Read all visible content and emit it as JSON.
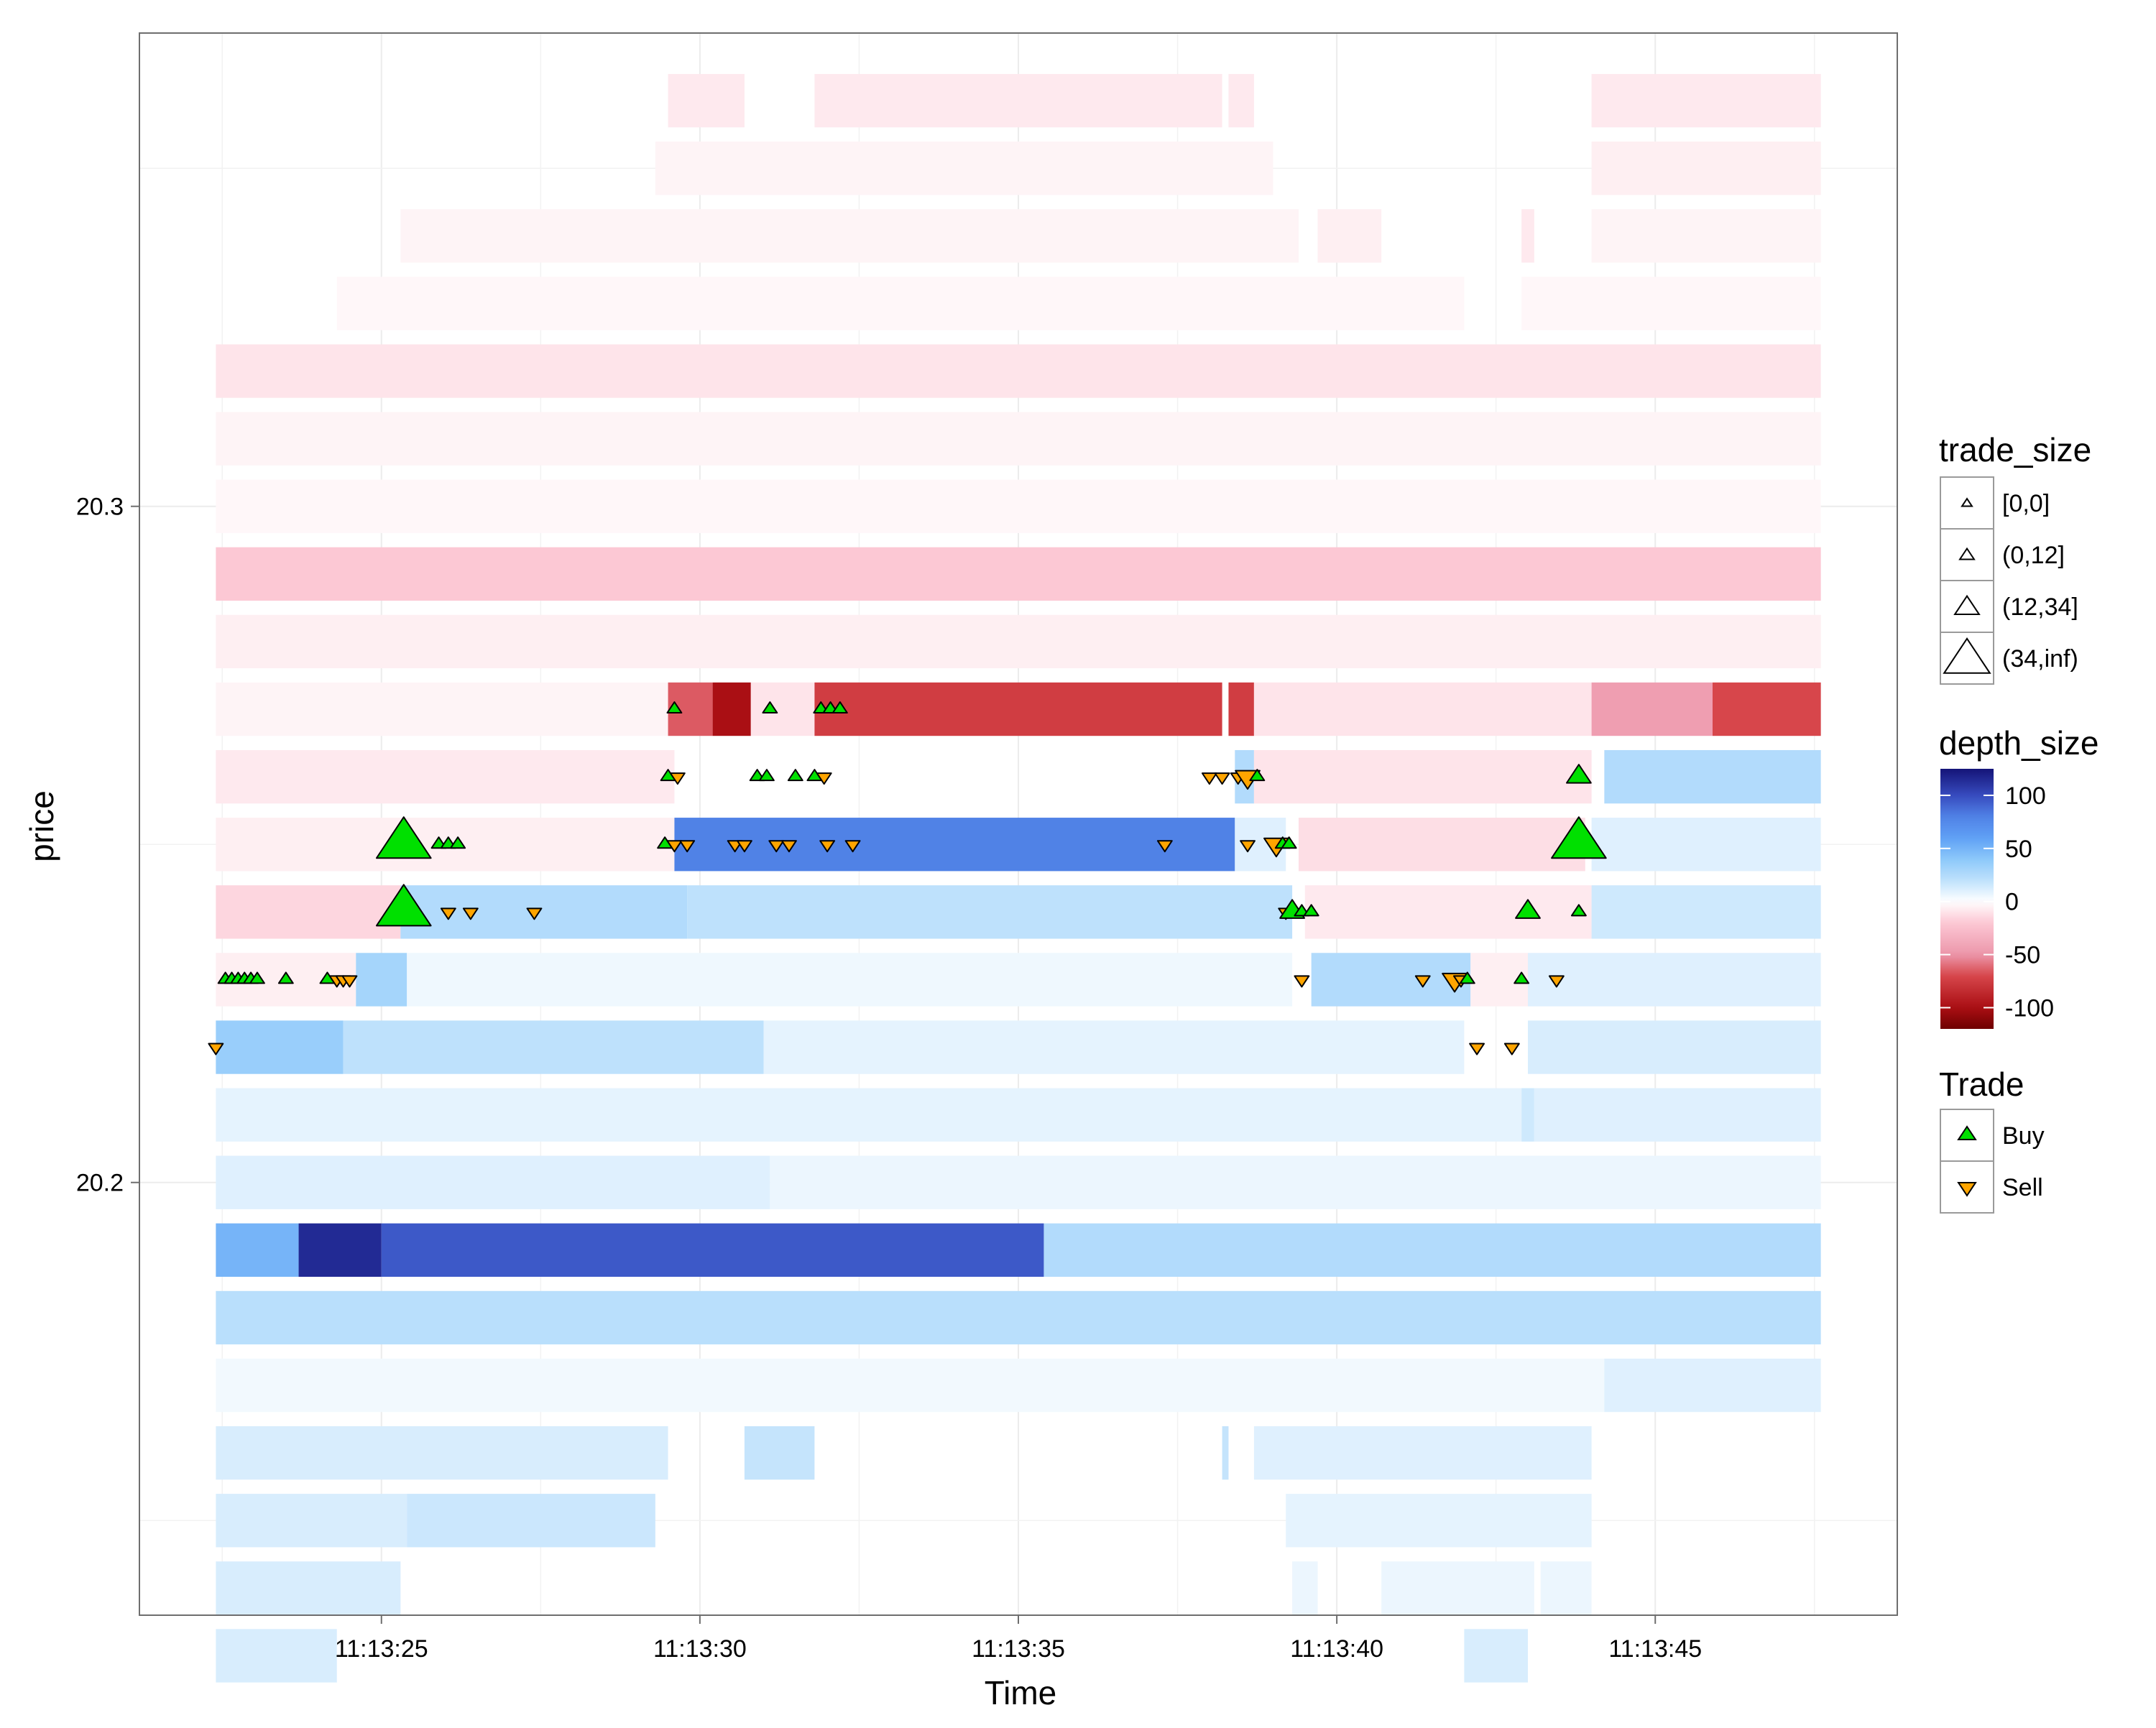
{
  "chart_data": {
    "type": "heatmap",
    "title": "",
    "xlabel": "Time",
    "ylabel": "price",
    "x_unit": "seconds after 11:13:00",
    "xlim": [
      21.2,
      48.8
    ],
    "ylim": [
      20.136,
      20.37
    ],
    "x_ticks": [
      {
        "value": 25,
        "label": "11:13:25"
      },
      {
        "value": 30,
        "label": "11:13:30"
      },
      {
        "value": 35,
        "label": "11:13:35"
      },
      {
        "value": 40,
        "label": "11:13:40"
      },
      {
        "value": 45,
        "label": "11:13:45"
      }
    ],
    "y_ticks": [
      {
        "value": 20.2,
        "label": "20.2"
      },
      {
        "value": 20.3,
        "label": "20.3"
      }
    ],
    "grid": true,
    "colors": {
      "positive_max": "#1a237e",
      "positive_mid": "#2f8df5",
      "zero": "#ffffff",
      "negative_mid": "#f4a1b6",
      "negative_max": "#8b0000",
      "buy": "#00e000",
      "sell": "#ffa500"
    },
    "depth_cells": [
      {
        "price": 20.36,
        "x0": 29.5,
        "x1": 30.7,
        "depth": -8
      },
      {
        "price": 20.36,
        "x0": 31.8,
        "x1": 38.2,
        "depth": -8
      },
      {
        "price": 20.36,
        "x0": 38.3,
        "x1": 38.7,
        "depth": -8
      },
      {
        "price": 20.36,
        "x0": 44.0,
        "x1": 47.6,
        "depth": -8
      },
      {
        "price": 20.35,
        "x0": 29.3,
        "x1": 39.0,
        "depth": -4
      },
      {
        "price": 20.35,
        "x0": 44.0,
        "x1": 47.6,
        "depth": -6
      },
      {
        "price": 20.34,
        "x0": 25.3,
        "x1": 39.4,
        "depth": -4
      },
      {
        "price": 20.34,
        "x0": 39.7,
        "x1": 40.7,
        "depth": -6
      },
      {
        "price": 20.34,
        "x0": 42.9,
        "x1": 43.1,
        "depth": -8
      },
      {
        "price": 20.34,
        "x0": 44.0,
        "x1": 47.6,
        "depth": -4
      },
      {
        "price": 20.33,
        "x0": 24.3,
        "x1": 42.0,
        "depth": -3
      },
      {
        "price": 20.33,
        "x0": 42.9,
        "x1": 47.6,
        "depth": -3
      },
      {
        "price": 20.32,
        "x0": 22.4,
        "x1": 47.6,
        "depth": -10
      },
      {
        "price": 20.31,
        "x0": 22.4,
        "x1": 47.6,
        "depth": -4
      },
      {
        "price": 20.3,
        "x0": 22.4,
        "x1": 47.6,
        "depth": -3
      },
      {
        "price": 20.29,
        "x0": 22.4,
        "x1": 47.6,
        "depth": -20
      },
      {
        "price": 20.28,
        "x0": 22.4,
        "x1": 47.6,
        "depth": -6
      },
      {
        "price": 20.27,
        "x0": 22.4,
        "x1": 29.5,
        "depth": -4
      },
      {
        "price": 20.27,
        "x0": 29.5,
        "x1": 30.2,
        "depth": -65
      },
      {
        "price": 20.27,
        "x0": 30.2,
        "x1": 30.8,
        "depth": -100
      },
      {
        "price": 20.27,
        "x0": 30.8,
        "x1": 31.8,
        "depth": -10
      },
      {
        "price": 20.27,
        "x0": 31.8,
        "x1": 38.2,
        "depth": -75
      },
      {
        "price": 20.27,
        "x0": 38.3,
        "x1": 38.7,
        "depth": -75
      },
      {
        "price": 20.27,
        "x0": 38.7,
        "x1": 44.0,
        "depth": -10
      },
      {
        "price": 20.27,
        "x0": 44.0,
        "x1": 45.9,
        "depth": -45
      },
      {
        "price": 20.27,
        "x0": 45.9,
        "x1": 47.6,
        "depth": -70
      },
      {
        "price": 20.26,
        "x0": 22.4,
        "x1": 29.6,
        "depth": -8
      },
      {
        "price": 20.26,
        "x0": 38.4,
        "x1": 38.7,
        "depth": 25
      },
      {
        "price": 20.26,
        "x0": 38.7,
        "x1": 44.0,
        "depth": -10
      },
      {
        "price": 20.26,
        "x0": 44.2,
        "x1": 47.6,
        "depth": 25
      },
      {
        "price": 20.25,
        "x0": 22.4,
        "x1": 29.6,
        "depth": -6
      },
      {
        "price": 20.25,
        "x0": 29.6,
        "x1": 38.4,
        "depth": 80
      },
      {
        "price": 20.25,
        "x0": 38.4,
        "x1": 39.2,
        "depth": 10
      },
      {
        "price": 20.25,
        "x0": 39.4,
        "x1": 43.9,
        "depth": -12
      },
      {
        "price": 20.25,
        "x0": 44.0,
        "x1": 47.6,
        "depth": 10
      },
      {
        "price": 20.24,
        "x0": 22.4,
        "x1": 25.3,
        "depth": -15
      },
      {
        "price": 20.24,
        "x0": 25.3,
        "x1": 29.8,
        "depth": 25
      },
      {
        "price": 20.24,
        "x0": 29.8,
        "x1": 39.3,
        "depth": 20
      },
      {
        "price": 20.24,
        "x0": 39.5,
        "x1": 44.0,
        "depth": -8
      },
      {
        "price": 20.24,
        "x0": 44.0,
        "x1": 47.6,
        "depth": 15
      },
      {
        "price": 20.23,
        "x0": 22.4,
        "x1": 24.6,
        "depth": -6
      },
      {
        "price": 20.23,
        "x0": 24.6,
        "x1": 25.4,
        "depth": 30
      },
      {
        "price": 20.23,
        "x0": 25.4,
        "x1": 39.3,
        "depth": 5
      },
      {
        "price": 20.23,
        "x0": 39.6,
        "x1": 42.1,
        "depth": 25
      },
      {
        "price": 20.23,
        "x0": 42.1,
        "x1": 43.0,
        "depth": -6
      },
      {
        "price": 20.23,
        "x0": 43.0,
        "x1": 44.1,
        "depth": 10
      },
      {
        "price": 20.23,
        "x0": 44.1,
        "x1": 47.6,
        "depth": 10
      },
      {
        "price": 20.22,
        "x0": 22.4,
        "x1": 24.4,
        "depth": 35
      },
      {
        "price": 20.22,
        "x0": 24.4,
        "x1": 31.0,
        "depth": 20
      },
      {
        "price": 20.22,
        "x0": 31.0,
        "x1": 42.0,
        "depth": 8
      },
      {
        "price": 20.22,
        "x0": 43.0,
        "x1": 47.6,
        "depth": 12
      },
      {
        "price": 20.21,
        "x0": 22.4,
        "x1": 42.9,
        "depth": 8
      },
      {
        "price": 20.21,
        "x0": 42.9,
        "x1": 43.1,
        "depth": 15
      },
      {
        "price": 20.21,
        "x0": 43.1,
        "x1": 47.6,
        "depth": 10
      },
      {
        "price": 20.2,
        "x0": 22.4,
        "x1": 31.1,
        "depth": 10
      },
      {
        "price": 20.2,
        "x0": 31.1,
        "x1": 47.6,
        "depth": 6
      },
      {
        "price": 20.19,
        "x0": 22.4,
        "x1": 23.7,
        "depth": 50
      },
      {
        "price": 20.19,
        "x0": 23.7,
        "x1": 25.0,
        "depth": 115
      },
      {
        "price": 20.19,
        "x0": 25.0,
        "x1": 35.4,
        "depth": 95
      },
      {
        "price": 20.19,
        "x0": 35.4,
        "x1": 47.6,
        "depth": 25
      },
      {
        "price": 20.18,
        "x0": 22.4,
        "x1": 47.6,
        "depth": 22
      },
      {
        "price": 20.17,
        "x0": 22.4,
        "x1": 44.2,
        "depth": 4
      },
      {
        "price": 20.17,
        "x0": 44.2,
        "x1": 47.6,
        "depth": 10
      },
      {
        "price": 20.16,
        "x0": 22.4,
        "x1": 29.5,
        "depth": 12
      },
      {
        "price": 20.16,
        "x0": 30.7,
        "x1": 31.8,
        "depth": 18
      },
      {
        "price": 20.16,
        "x0": 38.2,
        "x1": 38.3,
        "depth": 18
      },
      {
        "price": 20.16,
        "x0": 38.7,
        "x1": 44.0,
        "depth": 10
      },
      {
        "price": 20.15,
        "x0": 22.4,
        "x1": 25.4,
        "depth": 12
      },
      {
        "price": 20.15,
        "x0": 25.4,
        "x1": 29.3,
        "depth": 16
      },
      {
        "price": 20.15,
        "x0": 39.2,
        "x1": 44.0,
        "depth": 8
      },
      {
        "price": 20.14,
        "x0": 22.4,
        "x1": 25.3,
        "depth": 12
      },
      {
        "price": 20.14,
        "x0": 39.3,
        "x1": 39.7,
        "depth": 6
      },
      {
        "price": 20.14,
        "x0": 40.7,
        "x1": 43.1,
        "depth": 6
      },
      {
        "price": 20.14,
        "x0": 43.2,
        "x1": 44.0,
        "depth": 6
      },
      {
        "price": 20.13,
        "x0": 22.4,
        "x1": 24.3,
        "depth": 12
      },
      {
        "price": 20.13,
        "x0": 42.0,
        "x1": 43.0,
        "depth": 12
      }
    ],
    "trades": [
      {
        "x": 29.6,
        "price": 20.27,
        "side": "Buy",
        "size": "(0,12]"
      },
      {
        "x": 31.1,
        "price": 20.27,
        "side": "Buy",
        "size": "(0,12]"
      },
      {
        "x": 31.9,
        "price": 20.27,
        "side": "Buy",
        "size": "(0,12]"
      },
      {
        "x": 32.05,
        "price": 20.27,
        "side": "Buy",
        "size": "(0,12]"
      },
      {
        "x": 32.2,
        "price": 20.27,
        "side": "Buy",
        "size": "(0,12]"
      },
      {
        "x": 29.5,
        "price": 20.26,
        "side": "Buy",
        "size": "(0,12]"
      },
      {
        "x": 29.65,
        "price": 20.26,
        "side": "Sell",
        "size": "(0,12]"
      },
      {
        "x": 30.9,
        "price": 20.26,
        "side": "Buy",
        "size": "(0,12]"
      },
      {
        "x": 31.05,
        "price": 20.26,
        "side": "Buy",
        "size": "(0,12]"
      },
      {
        "x": 31.5,
        "price": 20.26,
        "side": "Buy",
        "size": "(0,12]"
      },
      {
        "x": 31.8,
        "price": 20.26,
        "side": "Buy",
        "size": "(0,12]"
      },
      {
        "x": 31.95,
        "price": 20.26,
        "side": "Sell",
        "size": "(0,12]"
      },
      {
        "x": 38.0,
        "price": 20.26,
        "side": "Sell",
        "size": "(0,12]"
      },
      {
        "x": 38.2,
        "price": 20.26,
        "side": "Sell",
        "size": "(0,12]"
      },
      {
        "x": 38.45,
        "price": 20.26,
        "side": "Sell",
        "size": "(0,12]"
      },
      {
        "x": 38.6,
        "price": 20.26,
        "side": "Sell",
        "size": "(12,34]"
      },
      {
        "x": 38.75,
        "price": 20.26,
        "side": "Buy",
        "size": "(0,12]"
      },
      {
        "x": 43.8,
        "price": 20.26,
        "side": "Buy",
        "size": "(12,34]"
      },
      {
        "x": 25.35,
        "price": 20.25,
        "side": "Buy",
        "size": "(34,inf)"
      },
      {
        "x": 25.9,
        "price": 20.25,
        "side": "Buy",
        "size": "(0,12]"
      },
      {
        "x": 26.05,
        "price": 20.25,
        "side": "Buy",
        "size": "(0,12]"
      },
      {
        "x": 26.2,
        "price": 20.25,
        "side": "Buy",
        "size": "(0,12]"
      },
      {
        "x": 29.45,
        "price": 20.25,
        "side": "Buy",
        "size": "(0,12]"
      },
      {
        "x": 29.6,
        "price": 20.25,
        "side": "Sell",
        "size": "(0,12]"
      },
      {
        "x": 29.8,
        "price": 20.25,
        "side": "Sell",
        "size": "(0,12]"
      },
      {
        "x": 30.55,
        "price": 20.25,
        "side": "Sell",
        "size": "(0,12]"
      },
      {
        "x": 30.7,
        "price": 20.25,
        "side": "Sell",
        "size": "(0,12]"
      },
      {
        "x": 31.2,
        "price": 20.25,
        "side": "Sell",
        "size": "(0,12]"
      },
      {
        "x": 31.4,
        "price": 20.25,
        "side": "Sell",
        "size": "(0,12]"
      },
      {
        "x": 32.0,
        "price": 20.25,
        "side": "Sell",
        "size": "(0,12]"
      },
      {
        "x": 32.4,
        "price": 20.25,
        "side": "Sell",
        "size": "(0,12]"
      },
      {
        "x": 37.3,
        "price": 20.25,
        "side": "Sell",
        "size": "(0,12]"
      },
      {
        "x": 38.6,
        "price": 20.25,
        "side": "Sell",
        "size": "(0,12]"
      },
      {
        "x": 39.05,
        "price": 20.25,
        "side": "Sell",
        "size": "(12,34]"
      },
      {
        "x": 39.15,
        "price": 20.25,
        "side": "Buy",
        "size": "(0,12]"
      },
      {
        "x": 39.25,
        "price": 20.25,
        "side": "Buy",
        "size": "(0,12]"
      },
      {
        "x": 43.8,
        "price": 20.25,
        "side": "Buy",
        "size": "(34,inf)"
      },
      {
        "x": 25.35,
        "price": 20.24,
        "side": "Buy",
        "size": "(34,inf)"
      },
      {
        "x": 26.05,
        "price": 20.24,
        "side": "Sell",
        "size": "(0,12]"
      },
      {
        "x": 26.4,
        "price": 20.24,
        "side": "Sell",
        "size": "(0,12]"
      },
      {
        "x": 27.4,
        "price": 20.24,
        "side": "Sell",
        "size": "(0,12]"
      },
      {
        "x": 39.2,
        "price": 20.24,
        "side": "Sell",
        "size": "(0,12]"
      },
      {
        "x": 39.3,
        "price": 20.24,
        "side": "Buy",
        "size": "(12,34]"
      },
      {
        "x": 39.45,
        "price": 20.24,
        "side": "Buy",
        "size": "(0,12]"
      },
      {
        "x": 39.6,
        "price": 20.24,
        "side": "Buy",
        "size": "(0,12]"
      },
      {
        "x": 43.0,
        "price": 20.24,
        "side": "Buy",
        "size": "(12,34]"
      },
      {
        "x": 43.8,
        "price": 20.24,
        "side": "Buy",
        "size": "(0,12]"
      },
      {
        "x": 22.55,
        "price": 20.23,
        "side": "Buy",
        "size": "(0,12]"
      },
      {
        "x": 22.65,
        "price": 20.23,
        "side": "Buy",
        "size": "(0,12]"
      },
      {
        "x": 22.75,
        "price": 20.23,
        "side": "Buy",
        "size": "(0,12]"
      },
      {
        "x": 22.85,
        "price": 20.23,
        "side": "Buy",
        "size": "(0,12]"
      },
      {
        "x": 22.95,
        "price": 20.23,
        "side": "Buy",
        "size": "(0,12]"
      },
      {
        "x": 23.05,
        "price": 20.23,
        "side": "Buy",
        "size": "(0,12]"
      },
      {
        "x": 23.5,
        "price": 20.23,
        "side": "Buy",
        "size": "(0,12]"
      },
      {
        "x": 24.15,
        "price": 20.23,
        "side": "Buy",
        "size": "(0,12]"
      },
      {
        "x": 24.3,
        "price": 20.23,
        "side": "Sell",
        "size": "(0,12]"
      },
      {
        "x": 24.4,
        "price": 20.23,
        "side": "Sell",
        "size": "(0,12]"
      },
      {
        "x": 24.5,
        "price": 20.23,
        "side": "Sell",
        "size": "(0,12]"
      },
      {
        "x": 39.45,
        "price": 20.23,
        "side": "Sell",
        "size": "(0,12]"
      },
      {
        "x": 41.35,
        "price": 20.23,
        "side": "Sell",
        "size": "(0,12]"
      },
      {
        "x": 41.85,
        "price": 20.23,
        "side": "Sell",
        "size": "(12,34]"
      },
      {
        "x": 41.95,
        "price": 20.23,
        "side": "Sell",
        "size": "(0,12]"
      },
      {
        "x": 42.05,
        "price": 20.23,
        "side": "Buy",
        "size": "(0,12]"
      },
      {
        "x": 42.9,
        "price": 20.23,
        "side": "Buy",
        "size": "(0,12]"
      },
      {
        "x": 43.45,
        "price": 20.23,
        "side": "Sell",
        "size": "(0,12]"
      },
      {
        "x": 22.4,
        "price": 20.22,
        "side": "Sell",
        "size": "(0,12]"
      },
      {
        "x": 42.2,
        "price": 20.22,
        "side": "Sell",
        "size": "(0,12]"
      },
      {
        "x": 42.75,
        "price": 20.22,
        "side": "Sell",
        "size": "(0,12]"
      }
    ]
  },
  "legends": {
    "trade_size": {
      "title": "trade_size",
      "entries": [
        "[0,0]",
        "(0,12]",
        "(12,34]",
        "(34,inf)"
      ]
    },
    "depth_size": {
      "title": "depth_size",
      "breaks": [
        {
          "value": 100,
          "label": "100"
        },
        {
          "value": 50,
          "label": "50"
        },
        {
          "value": 0,
          "label": "0"
        },
        {
          "value": -50,
          "label": "-50"
        },
        {
          "value": -100,
          "label": "-100"
        }
      ],
      "range": [
        -120,
        125
      ]
    },
    "trade": {
      "title": "Trade",
      "entries": [
        {
          "label": "Buy",
          "symbol": "up-triangle",
          "color": "#00e000"
        },
        {
          "label": "Sell",
          "symbol": "down-triangle",
          "color": "#ffa500"
        }
      ]
    }
  }
}
